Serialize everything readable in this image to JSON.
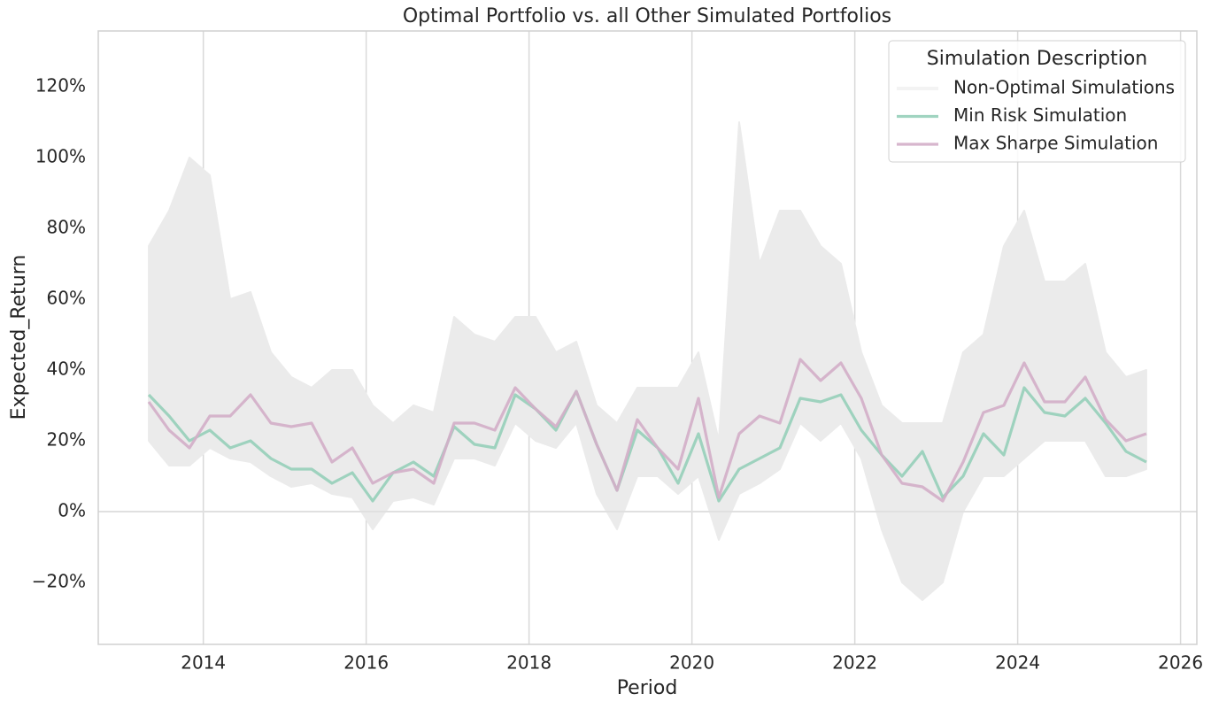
{
  "chart_data": {
    "type": "line",
    "title": "Optimal Portfolio vs. all Other Simulated Portfolios",
    "xlabel": "Period",
    "ylabel": "Expected_Return",
    "x": [
      2013.33,
      2013.58,
      2013.83,
      2014.08,
      2014.33,
      2014.58,
      2014.83,
      2015.08,
      2015.33,
      2015.58,
      2015.83,
      2016.08,
      2016.33,
      2016.58,
      2016.83,
      2017.08,
      2017.33,
      2017.58,
      2017.83,
      2018.08,
      2018.33,
      2018.58,
      2018.83,
      2019.08,
      2019.33,
      2019.58,
      2019.83,
      2020.08,
      2020.33,
      2020.58,
      2020.83,
      2021.08,
      2021.33,
      2021.58,
      2021.83,
      2022.08,
      2022.33,
      2022.58,
      2022.83,
      2023.08,
      2023.33,
      2023.58,
      2023.83,
      2024.08,
      2024.33,
      2024.58,
      2024.83,
      2025.08,
      2025.33,
      2025.58
    ],
    "series": [
      {
        "name": "Non-Optimal Simulations",
        "color": "#ebebeb",
        "values": [
          75,
          85,
          100,
          95,
          60,
          62,
          45,
          38,
          35,
          40,
          40,
          30,
          25,
          30,
          28,
          55,
          50,
          48,
          55,
          55,
          45,
          48,
          30,
          25,
          35,
          35,
          35,
          45,
          20,
          110,
          70,
          85,
          85,
          75,
          70,
          45,
          30,
          25,
          25,
          25,
          45,
          50,
          75,
          85,
          65,
          65,
          70,
          45,
          38,
          40
        ],
        "lower": [
          20,
          13,
          13,
          18,
          15,
          14,
          10,
          7,
          8,
          5,
          4,
          -5,
          3,
          4,
          2,
          15,
          15,
          13,
          25,
          20,
          18,
          25,
          5,
          -5,
          10,
          10,
          5,
          10,
          -8,
          5,
          8,
          12,
          25,
          20,
          25,
          15,
          -5,
          -20,
          -25,
          -20,
          0,
          10,
          10,
          15,
          20,
          20,
          20,
          10,
          10,
          12
        ]
      },
      {
        "name": "Min Risk Simulation",
        "color": "#96cfb9",
        "values": [
          33,
          27,
          20,
          23,
          18,
          20,
          15,
          12,
          12,
          8,
          11,
          3,
          11,
          14,
          10,
          24,
          19,
          18,
          33,
          29,
          23,
          34,
          19,
          6,
          23,
          18,
          8,
          22,
          3,
          12,
          15,
          18,
          32,
          31,
          33,
          23,
          16,
          10,
          17,
          4,
          10,
          22,
          16,
          35,
          28,
          27,
          32,
          25,
          17,
          14
        ]
      },
      {
        "name": "Max Sharpe Simulation",
        "color": "#d3aec8",
        "values": [
          31,
          23,
          18,
          27,
          27,
          33,
          25,
          24,
          25,
          14,
          18,
          8,
          11,
          12,
          8,
          25,
          25,
          23,
          35,
          29,
          24,
          34,
          19,
          6,
          26,
          18,
          12,
          32,
          4,
          22,
          27,
          25,
          43,
          37,
          42,
          32,
          16,
          8,
          7,
          3,
          14,
          28,
          30,
          42,
          31,
          31,
          38,
          26,
          20,
          22
        ]
      }
    ],
    "xlim": [
      2012.71,
      2026.2
    ],
    "xticks": [
      2014,
      2016,
      2018,
      2020,
      2022,
      2024,
      2026
    ],
    "ylim": [
      -37.5,
      135.75
    ],
    "yticks": [
      {
        "value": -20,
        "label": "−20%"
      },
      {
        "value": 0,
        "label": "0%"
      },
      {
        "value": 20,
        "label": "20%"
      },
      {
        "value": 40,
        "label": "40%"
      },
      {
        "value": 60,
        "label": "60%"
      },
      {
        "value": 80,
        "label": "80%"
      },
      {
        "value": 100,
        "label": "100%"
      },
      {
        "value": 120,
        "label": "120%"
      }
    ],
    "hline": 0,
    "grid": "x",
    "legend_title": "Simulation Description",
    "legend": "upper right"
  }
}
